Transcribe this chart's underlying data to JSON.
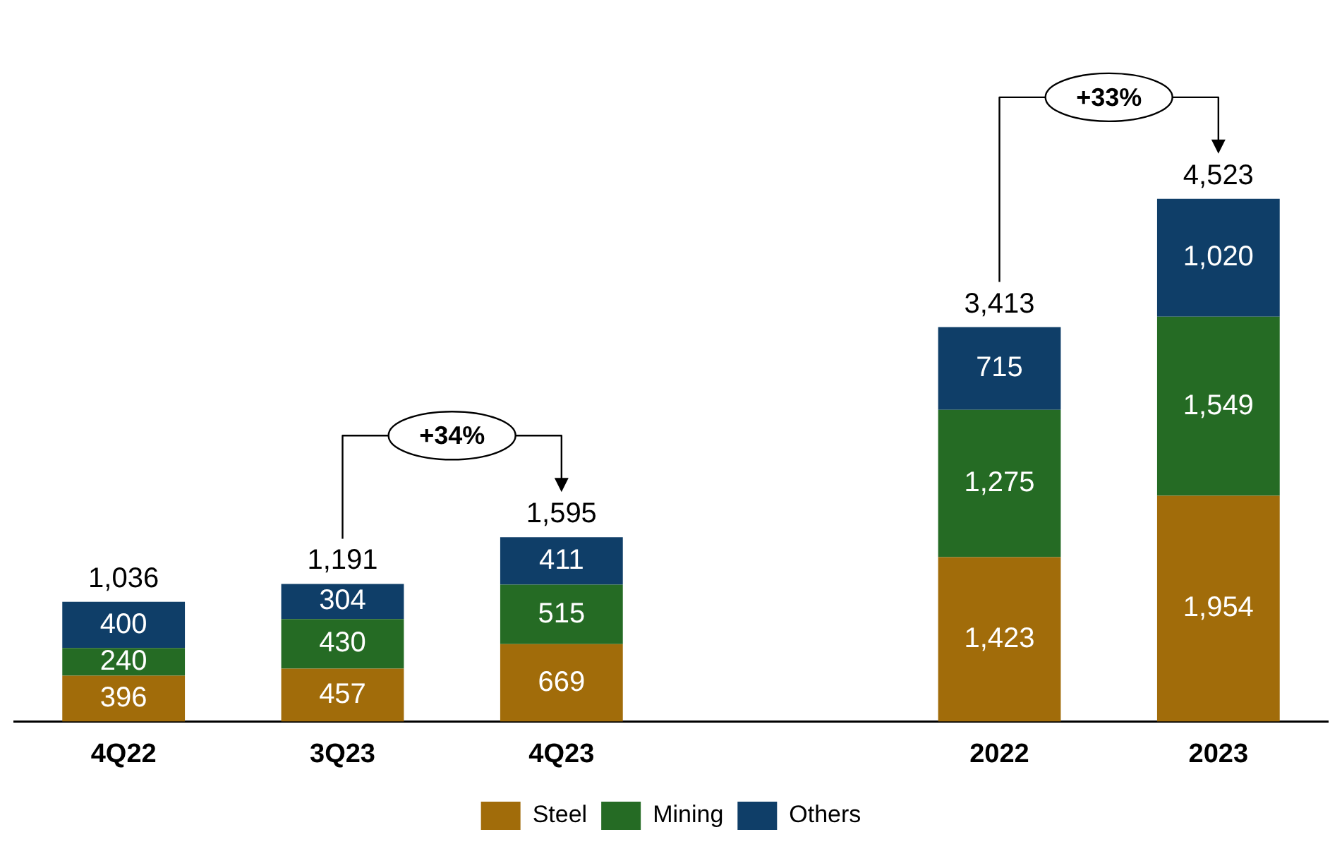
{
  "chart_data": {
    "type": "bar",
    "stacked": true,
    "categories": [
      "4Q22",
      "3Q23",
      "4Q23",
      null,
      "2022",
      "2023"
    ],
    "series": [
      {
        "name": "Steel",
        "color": "#a16c0a",
        "values": [
          396,
          457,
          669,
          null,
          1423,
          1954
        ],
        "value_labels": [
          "396",
          "457",
          "669",
          null,
          "1,423",
          "1,954"
        ]
      },
      {
        "name": "Mining",
        "color": "#256b24",
        "values": [
          240,
          430,
          515,
          null,
          1275,
          1549
        ],
        "value_labels": [
          "240",
          "430",
          "515",
          null,
          "1,275",
          "1,549"
        ]
      },
      {
        "name": "Others",
        "color": "#0f3e68",
        "values": [
          400,
          304,
          411,
          null,
          715,
          1020
        ],
        "value_labels": [
          "400",
          "304",
          "411",
          null,
          "715",
          "1,020"
        ]
      }
    ],
    "totals": [
      "1,036",
      "1,191",
      "1,595",
      null,
      "3,413",
      "4,523"
    ],
    "annotations": [
      "+34%",
      "+33%"
    ],
    "legend": "bottom",
    "grid": false
  }
}
